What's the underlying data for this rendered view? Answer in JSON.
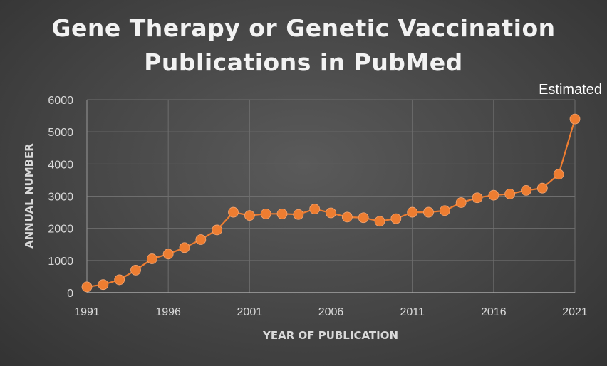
{
  "chart_data": {
    "type": "line",
    "title_lines": [
      "Gene Therapy or Genetic Vaccination",
      "Publications in PubMed"
    ],
    "xlabel": "YEAR OF PUBLICATION",
    "ylabel": "ANNUAL NUMBER",
    "xlim": [
      1991,
      2021
    ],
    "ylim": [
      0,
      6000
    ],
    "x_ticks": [
      "1991",
      "1996",
      "2001",
      "2006",
      "2011",
      "2016",
      "2021"
    ],
    "y_ticks": [
      "0",
      "1000",
      "2000",
      "3000",
      "4000",
      "5000",
      "6000"
    ],
    "grid": true,
    "series": [
      {
        "color": "#ed7d31",
        "points": [
          [
            1991,
            180
          ],
          [
            1992,
            250
          ],
          [
            1993,
            400
          ],
          [
            1994,
            700
          ],
          [
            1995,
            1050
          ],
          [
            1996,
            1200
          ],
          [
            1997,
            1400
          ],
          [
            1998,
            1650
          ],
          [
            1999,
            1950
          ],
          [
            2000,
            2500
          ],
          [
            2001,
            2400
          ],
          [
            2002,
            2450
          ],
          [
            2003,
            2450
          ],
          [
            2004,
            2430
          ],
          [
            2005,
            2600
          ],
          [
            2006,
            2480
          ],
          [
            2007,
            2350
          ],
          [
            2008,
            2330
          ],
          [
            2009,
            2220
          ],
          [
            2010,
            2300
          ],
          [
            2011,
            2500
          ],
          [
            2012,
            2500
          ],
          [
            2013,
            2550
          ],
          [
            2014,
            2800
          ],
          [
            2015,
            2950
          ],
          [
            2016,
            3030
          ],
          [
            2017,
            3070
          ],
          [
            2018,
            3180
          ],
          [
            2019,
            3250
          ],
          [
            2020,
            3680
          ],
          [
            2021,
            5400
          ]
        ]
      }
    ],
    "annotations": [
      {
        "text": "Estimated",
        "x": 2021,
        "y": 5400
      }
    ]
  }
}
